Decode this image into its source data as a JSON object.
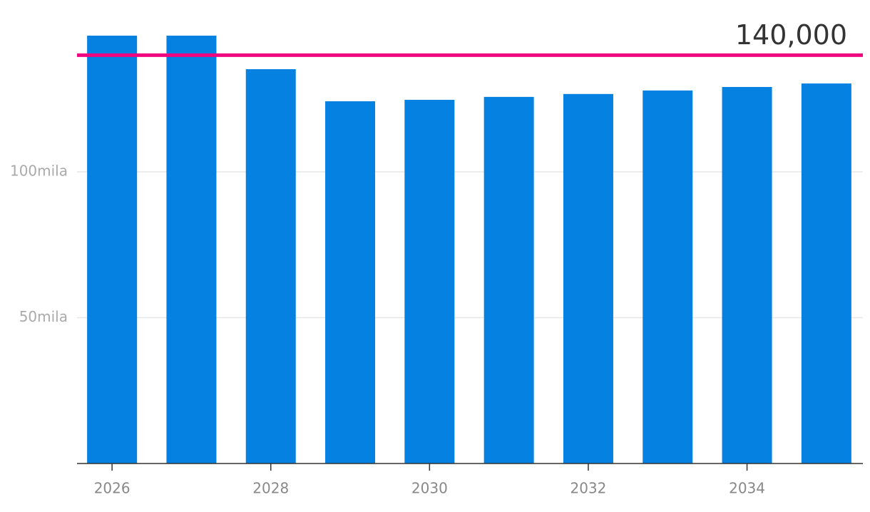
{
  "chart_data": {
    "type": "bar",
    "categories": [
      "2026",
      null,
      "2028",
      null,
      "2030",
      null,
      "2032",
      null,
      "2034",
      null
    ],
    "values": [
      146700,
      146700,
      135200,
      124200,
      124700,
      125700,
      126700,
      127900,
      129100,
      130300
    ],
    "color": "#0581e2",
    "ylim": [
      0,
      150000
    ],
    "yticks": [
      {
        "value": 50000,
        "label": "50mila"
      },
      {
        "value": 100000,
        "label": "100mila"
      }
    ],
    "grid": true,
    "reference_line": {
      "value": 140000,
      "label": "140,000",
      "color": "#f0067f"
    }
  }
}
